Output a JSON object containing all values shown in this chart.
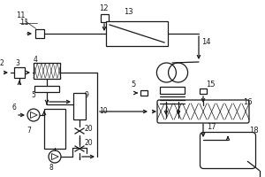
{
  "bg_color": "#ffffff",
  "line_color": "#1a1a1a",
  "lw": 0.9,
  "fig_width": 3.0,
  "fig_height": 2.0,
  "dpi": 100
}
